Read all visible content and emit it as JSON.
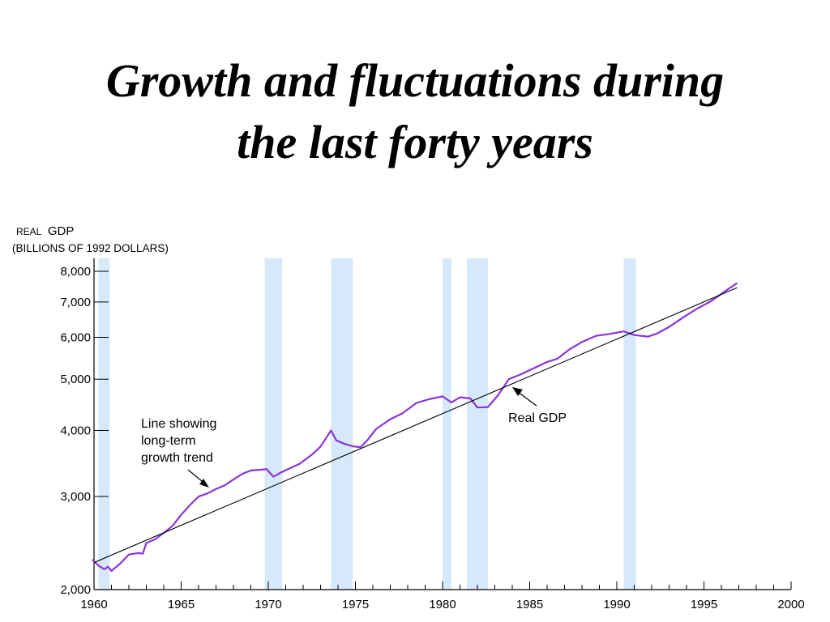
{
  "slide": {
    "title_line1": "Growth and fluctuations during",
    "title_line2": "the last forty years"
  },
  "chart_data": {
    "type": "line",
    "ylabel_small": "REAL",
    "ylabel_big": "GDP",
    "ylabel_units": "(BILLIONS OF 1992 DOLLARS)",
    "y_scale": "log",
    "xlim": [
      1960,
      2000
    ],
    "ylim": [
      2000,
      8500
    ],
    "x_ticks": [
      1960,
      1965,
      1970,
      1975,
      1980,
      1985,
      1990,
      1995,
      2000
    ],
    "y_ticks": [
      {
        "value": 2000,
        "label": "2,000"
      },
      {
        "value": 3000,
        "label": "3,000"
      },
      {
        "value": 4000,
        "label": "4,000"
      },
      {
        "value": 5000,
        "label": "5,000"
      },
      {
        "value": 6000,
        "label": "6,000"
      },
      {
        "value": 7000,
        "label": "7,000"
      },
      {
        "value": 8000,
        "label": "8,000"
      }
    ],
    "recessions": [
      [
        1960.25,
        1960.9
      ],
      [
        1969.8,
        1970.8
      ],
      [
        1973.6,
        1974.85
      ],
      [
        1980.0,
        1980.5
      ],
      [
        1981.4,
        1982.6
      ],
      [
        1990.4,
        1991.1
      ]
    ],
    "series": [
      {
        "name": "Real GDP",
        "color": "#8a35d8",
        "x": [
          1959.9,
          1960.3,
          1960.6,
          1960.8,
          1961.0,
          1961.5,
          1962.0,
          1962.5,
          1962.8,
          1963.0,
          1963.5,
          1964.0,
          1964.5,
          1965.0,
          1965.5,
          1966.0,
          1966.5,
          1967.0,
          1967.5,
          1968.0,
          1968.5,
          1969.0,
          1969.5,
          1969.9,
          1970.3,
          1970.8,
          1971.3,
          1971.8,
          1972.5,
          1973.0,
          1973.6,
          1973.9,
          1974.4,
          1974.9,
          1975.3,
          1975.7,
          1976.2,
          1977.0,
          1977.7,
          1978.5,
          1979.3,
          1980.0,
          1980.5,
          1981.0,
          1981.6,
          1982.0,
          1982.6,
          1983.2,
          1983.8,
          1984.5,
          1985.2,
          1986.0,
          1986.6,
          1987.3,
          1988.0,
          1988.8,
          1989.6,
          1990.4,
          1991.0,
          1991.8,
          1992.3,
          1993.0,
          1993.8,
          1994.6,
          1995.4,
          1996.2,
          1996.9
        ],
        "y": [
          2280,
          2215,
          2185,
          2210,
          2170,
          2240,
          2330,
          2345,
          2340,
          2450,
          2490,
          2560,
          2640,
          2770,
          2890,
          3000,
          3040,
          3100,
          3150,
          3230,
          3310,
          3360,
          3370,
          3380,
          3270,
          3340,
          3400,
          3460,
          3600,
          3730,
          4000,
          3830,
          3770,
          3730,
          3720,
          3840,
          4030,
          4200,
          4310,
          4510,
          4590,
          4640,
          4520,
          4620,
          4600,
          4420,
          4430,
          4670,
          5000,
          5110,
          5240,
          5390,
          5470,
          5700,
          5880,
          6040,
          6090,
          6160,
          6060,
          6020,
          6100,
          6280,
          6540,
          6800,
          7020,
          7330,
          7600
        ]
      },
      {
        "name": "Line showing long-term growth trend",
        "color": "#000000",
        "x": [
          1960.0,
          1996.9
        ],
        "y": [
          2250,
          7450
        ]
      }
    ],
    "annotations": [
      {
        "text": "Real GDP",
        "x": 1984.7,
        "y": 4010
      },
      {
        "lines": [
          "Line showing",
          "long-term",
          "growth trend"
        ],
        "x": 1962.6,
        "y": 3820
      }
    ]
  }
}
